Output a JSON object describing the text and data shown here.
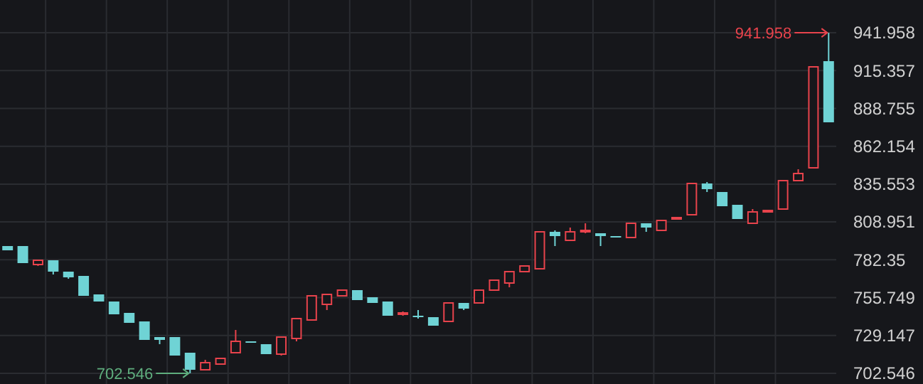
{
  "chart_data": {
    "type": "candlestick",
    "categories": [
      null,
      null,
      null,
      null,
      null,
      null,
      null,
      null,
      null,
      null,
      null,
      null,
      null,
      null,
      null,
      null,
      null,
      null,
      null,
      null,
      null,
      null,
      null,
      null,
      null,
      null,
      null,
      null,
      null,
      null,
      null,
      null,
      null,
      null,
      null,
      null,
      null,
      null,
      null,
      null,
      null,
      null,
      null,
      null,
      null,
      null,
      null,
      null,
      null,
      null,
      null,
      null,
      null,
      null,
      null
    ],
    "ohlc": [
      [
        792,
        792,
        789,
        789
      ],
      [
        792,
        792,
        780,
        780
      ],
      [
        779,
        782,
        778,
        782
      ],
      [
        782,
        782,
        772,
        774
      ],
      [
        774,
        774,
        769,
        770
      ],
      [
        771,
        771,
        757,
        757
      ],
      [
        758,
        758,
        753,
        753
      ],
      [
        753,
        753,
        744,
        744
      ],
      [
        745,
        745,
        738,
        738
      ],
      [
        739,
        739,
        726,
        726
      ],
      [
        728,
        728,
        723,
        726
      ],
      [
        728,
        728,
        715,
        715
      ],
      [
        717,
        717,
        702.546,
        705
      ],
      [
        705,
        712,
        705,
        710
      ],
      [
        709,
        713,
        709,
        713
      ],
      [
        717,
        733,
        717,
        725
      ],
      [
        725,
        725,
        724,
        724
      ],
      [
        723,
        723,
        716,
        716
      ],
      [
        716,
        728,
        715,
        728
      ],
      [
        727,
        741,
        725,
        741
      ],
      [
        740,
        757,
        740,
        757
      ],
      [
        751,
        758,
        747,
        758
      ],
      [
        757,
        761,
        757,
        761
      ],
      [
        761,
        761,
        754,
        754
      ],
      [
        756,
        756,
        752,
        752
      ],
      [
        753,
        753,
        743,
        743
      ],
      [
        744,
        746,
        743,
        745
      ],
      [
        743,
        747,
        741,
        742
      ],
      [
        742,
        742,
        736,
        736
      ],
      [
        739,
        752,
        739,
        752
      ],
      [
        752,
        752,
        747,
        748
      ],
      [
        752,
        761,
        752,
        761
      ],
      [
        761,
        768,
        761,
        768
      ],
      [
        766,
        774,
        763,
        774
      ],
      [
        774,
        778,
        774,
        778
      ],
      [
        776,
        802,
        776,
        802
      ],
      [
        802,
        803,
        792,
        799
      ],
      [
        796,
        805,
        796,
        802
      ],
      [
        802,
        808,
        801,
        803
      ],
      [
        801,
        801,
        792,
        799
      ],
      [
        799,
        799,
        798,
        798
      ],
      [
        798,
        808,
        798,
        808
      ],
      [
        808,
        808,
        802,
        805
      ],
      [
        803,
        810,
        803,
        810
      ],
      [
        811,
        812,
        811,
        812
      ],
      [
        814,
        836,
        814,
        836
      ],
      [
        836,
        837,
        830,
        832
      ],
      [
        830,
        830,
        820,
        820
      ],
      [
        821,
        821,
        811,
        811
      ],
      [
        808,
        818,
        808,
        816
      ],
      [
        816,
        817,
        816,
        817
      ],
      [
        818,
        838,
        818,
        838
      ],
      [
        838,
        846,
        838,
        843
      ],
      [
        847,
        918,
        847,
        918
      ],
      [
        922,
        941.958,
        879,
        879
      ]
    ],
    "colors": [
      "#6fd3d5",
      "#6fd3d5",
      "#e8434c",
      "#6fd3d5",
      "#6fd3d5",
      "#6fd3d5",
      "#6fd3d5",
      "#6fd3d5",
      "#6fd3d5",
      "#6fd3d5",
      "#6fd3d5",
      "#6fd3d5",
      "#6fd3d5",
      "#e8434c",
      "#e8434c",
      "#e8434c",
      "#6fd3d5",
      "#6fd3d5",
      "#e8434c",
      "#e8434c",
      "#e8434c",
      "#e8434c",
      "#e8434c",
      "#6fd3d5",
      "#6fd3d5",
      "#6fd3d5",
      "#e8434c",
      "#6fd3d5",
      "#6fd3d5",
      "#e8434c",
      "#6fd3d5",
      "#e8434c",
      "#e8434c",
      "#e8434c",
      "#e8434c",
      "#e8434c",
      "#6fd3d5",
      "#e8434c",
      "#e8434c",
      "#6fd3d5",
      "#6fd3d5",
      "#e8434c",
      "#6fd3d5",
      "#e8434c",
      "#e8434c",
      "#e8434c",
      "#6fd3d5",
      "#6fd3d5",
      "#6fd3d5",
      "#e8434c",
      "#e8434c",
      "#e8434c",
      "#e8434c",
      "#e8434c",
      "#6fd3d5"
    ],
    "ylim": [
      695,
      965
    ],
    "yticks": [
      702.546,
      729.147,
      755.749,
      782.35,
      808.951,
      835.553,
      862.154,
      888.755,
      915.357,
      941.958
    ],
    "grid": true,
    "tick_labels": "y",
    "annotations": [
      "941.958",
      "702.546"
    ]
  }
}
